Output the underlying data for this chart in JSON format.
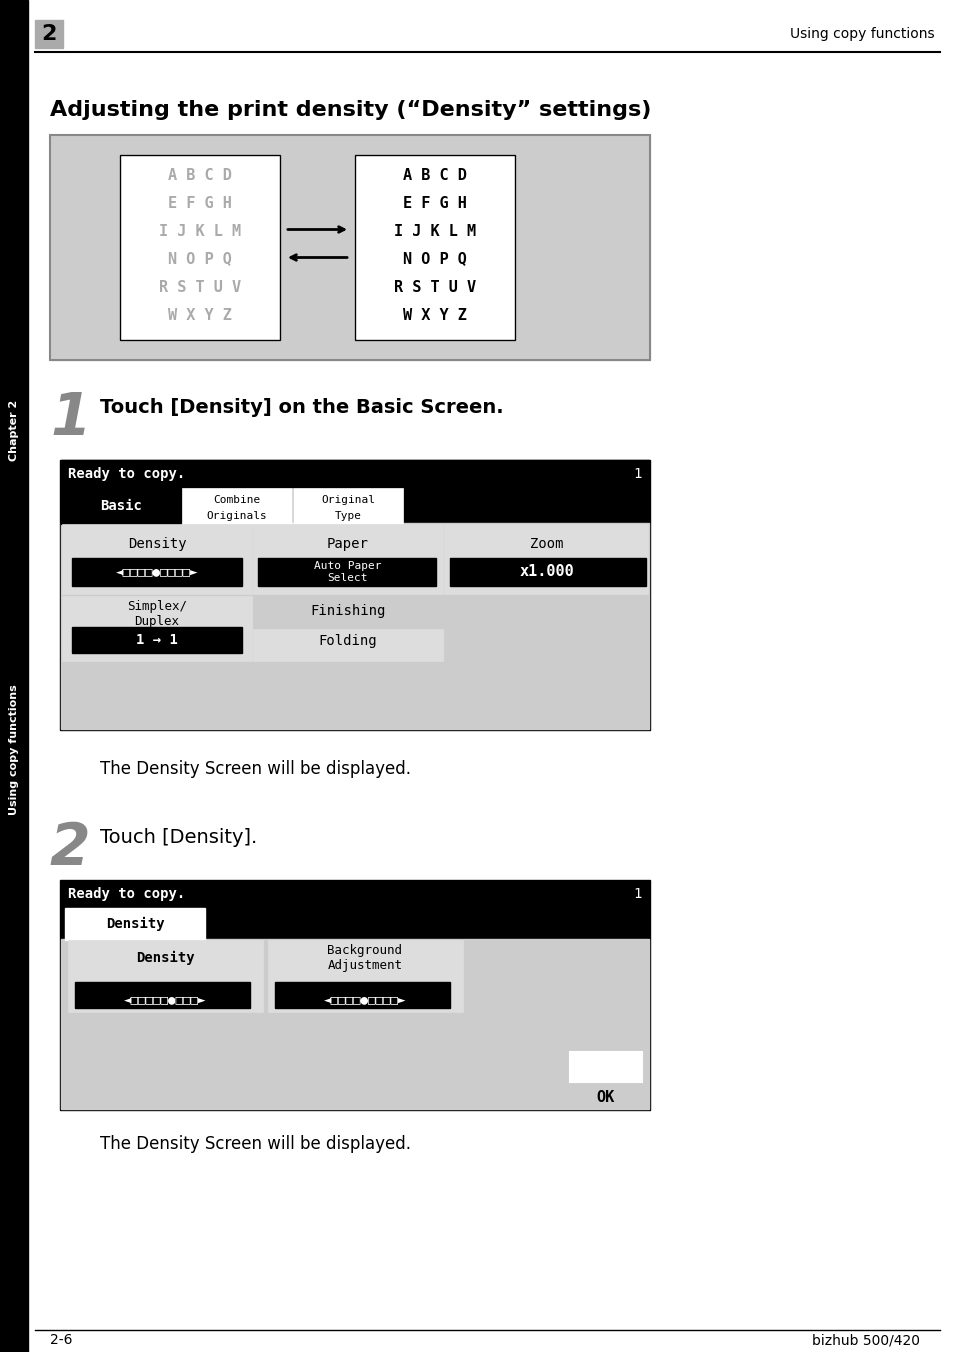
{
  "page_bg": "#ffffff",
  "header_num": "2",
  "header_right": "Using copy functions",
  "title": "Adjusting the print density (“Density” settings)",
  "sidebar_top": "Chapter 2",
  "sidebar_bottom": "Using copy functions",
  "step1_num": "1",
  "step1_text": "Touch [Density] on the Basic Screen.",
  "step1_note": "The Density Screen will be displayed.",
  "step2_num": "2",
  "step2_text": "Touch [Density].",
  "step2_note": "The Density Screen will be displayed.",
  "footer_left": "2-6",
  "footer_right": "bizhub 500/420",
  "screen1_header": "Ready to copy.",
  "screen1_num": "1",
  "screen2_header": "Ready to copy.",
  "screen2_num": "1",
  "abc_lines_gray": [
    "A B C D",
    "E F G H",
    "I J K L M",
    "N O P Q",
    "R S T U V",
    "W X Y Z"
  ],
  "abc_lines_black": [
    "A B C D",
    "E F G H",
    "I J K L M",
    "N O P Q",
    "R S T U V",
    "W X Y Z"
  ]
}
